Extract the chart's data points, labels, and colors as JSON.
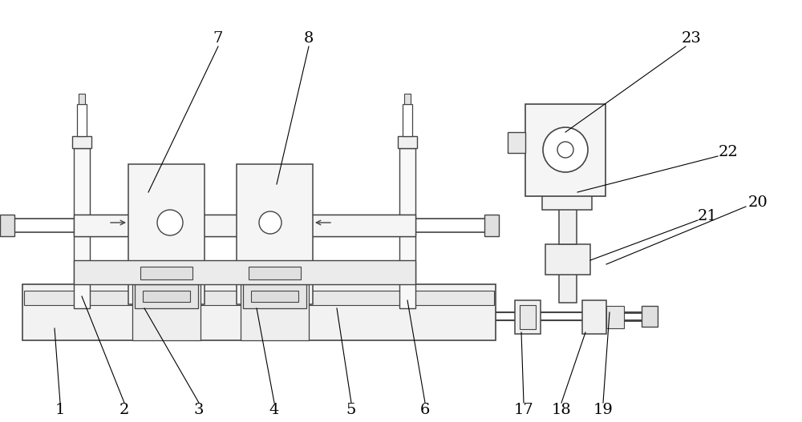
{
  "bg": "#ffffff",
  "lc": "#444444",
  "lw": 1.0,
  "fig_w": 10.0,
  "fig_h": 5.27,
  "dpi": 100
}
